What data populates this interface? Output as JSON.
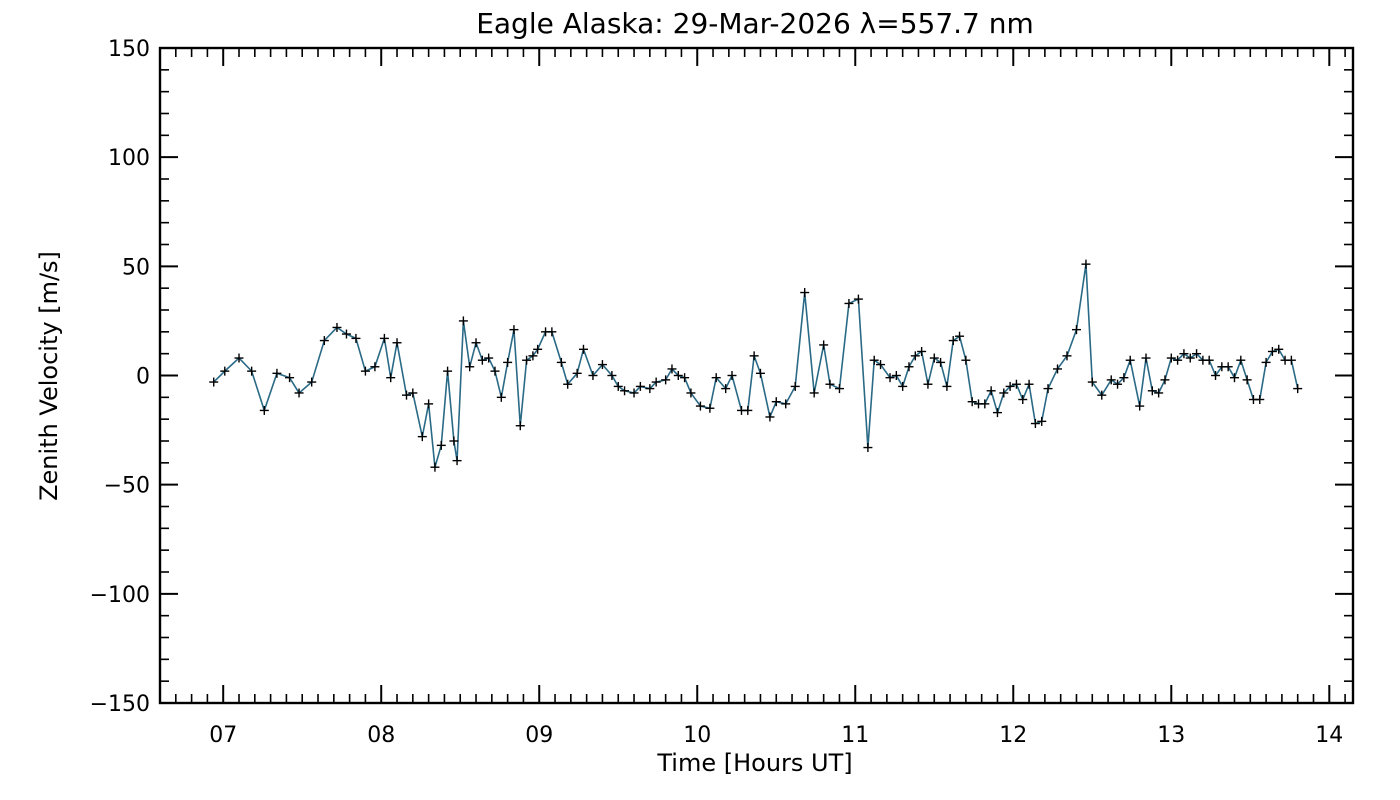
{
  "chart_data": {
    "type": "line",
    "title": "Eagle Alaska: 29-Mar-2026 λ=557.7 nm",
    "xlabel": "Time [Hours UT]",
    "ylabel": "Zenith Velocity [m/s]",
    "xlim": [
      6.6,
      14.15
    ],
    "ylim": [
      -150,
      150
    ],
    "xticks": [
      7,
      8,
      9,
      10,
      11,
      12,
      13,
      14
    ],
    "xtick_labels": [
      "07",
      "08",
      "09",
      "10",
      "11",
      "12",
      "13",
      "14"
    ],
    "yticks": [
      -150,
      -100,
      -50,
      0,
      50,
      100,
      150
    ],
    "ytick_labels": [
      "−150",
      "−100",
      "−50",
      "0",
      "50",
      "100",
      "150"
    ],
    "grid": false,
    "line_color": "#2a6a86",
    "marker": "+",
    "series": [
      {
        "x": [
          6.94,
          7.01,
          7.1,
          7.18,
          7.26,
          7.34,
          7.42,
          7.48,
          7.56,
          7.64,
          7.72,
          7.78,
          7.84,
          7.9,
          7.96,
          8.02,
          8.06,
          8.1,
          8.16,
          8.2,
          8.26,
          8.3,
          8.34,
          8.38,
          8.42,
          8.46,
          8.48,
          8.52,
          8.56,
          8.6,
          8.64,
          8.68,
          8.72,
          8.76,
          8.8,
          8.84,
          8.88,
          8.92,
          8.96,
          8.99,
          9.04,
          9.08,
          9.14,
          9.18,
          9.24,
          9.28,
          9.34,
          9.4,
          9.46,
          9.5,
          9.54,
          9.6,
          9.64,
          9.7,
          9.74,
          9.8,
          9.84,
          9.88,
          9.92,
          9.96,
          10.02,
          10.08,
          10.12,
          10.18,
          10.22,
          10.28,
          10.32,
          10.36,
          10.4,
          10.46,
          10.5,
          10.56,
          10.62,
          10.68,
          10.74,
          10.8,
          10.84,
          10.9,
          10.96,
          11.02,
          11.08,
          11.12,
          11.16,
          11.22,
          11.26,
          11.3,
          11.34,
          11.38,
          11.42,
          11.46,
          11.5,
          11.54,
          11.58,
          11.62,
          11.66,
          11.7,
          11.74,
          11.78,
          11.82,
          11.86,
          11.9,
          11.94,
          11.98,
          12.02,
          12.06,
          12.1,
          12.14,
          12.18,
          12.22,
          12.28,
          12.34,
          12.4,
          12.46,
          12.5,
          12.56,
          12.62,
          12.66,
          12.7,
          12.74,
          12.8,
          12.84,
          12.88,
          12.92,
          12.96,
          13.0,
          13.04,
          13.08,
          13.12,
          13.16,
          13.2,
          13.24,
          13.28,
          13.32,
          13.36,
          13.4,
          13.44,
          13.48,
          13.52,
          13.56,
          13.6,
          13.64,
          13.68,
          13.72,
          13.76,
          13.8
        ],
        "y": [
          -3,
          2,
          8,
          2,
          -16,
          1,
          -1,
          -8,
          -3,
          16,
          22,
          19,
          17,
          2,
          4,
          17,
          -1,
          15,
          -9,
          -8,
          -28,
          -13,
          -42,
          -32,
          2,
          -30,
          -39,
          25,
          4,
          15,
          7,
          8,
          2,
          -10,
          6,
          21,
          -23,
          7,
          9,
          12,
          20,
          20,
          6,
          -4,
          1,
          12,
          0,
          5,
          0,
          -5,
          -7,
          -8,
          -5,
          -6,
          -3,
          -2,
          3,
          0,
          -1,
          -8,
          -14,
          -15,
          -1,
          -6,
          0,
          -16,
          -16,
          9,
          1,
          -19,
          -12,
          -13,
          -5,
          38,
          -8,
          14,
          -4,
          -6,
          33,
          35,
          -33,
          7,
          5,
          -1,
          0,
          -5,
          4,
          9,
          11,
          -4,
          8,
          6,
          -5,
          16,
          18,
          7,
          -12,
          -13,
          -13,
          -7,
          -17,
          -8,
          -5,
          -4,
          -11,
          -4,
          -22,
          -21,
          -6,
          3,
          9,
          21,
          51,
          -3,
          -9,
          -2,
          -4,
          -1,
          7,
          -14,
          8,
          -7,
          -8,
          -2,
          8,
          7,
          10,
          8,
          10,
          7,
          7,
          0,
          4,
          4,
          -1,
          7,
          -2,
          -11,
          -11,
          6,
          11,
          12,
          7,
          7,
          -6
        ]
      }
    ]
  }
}
